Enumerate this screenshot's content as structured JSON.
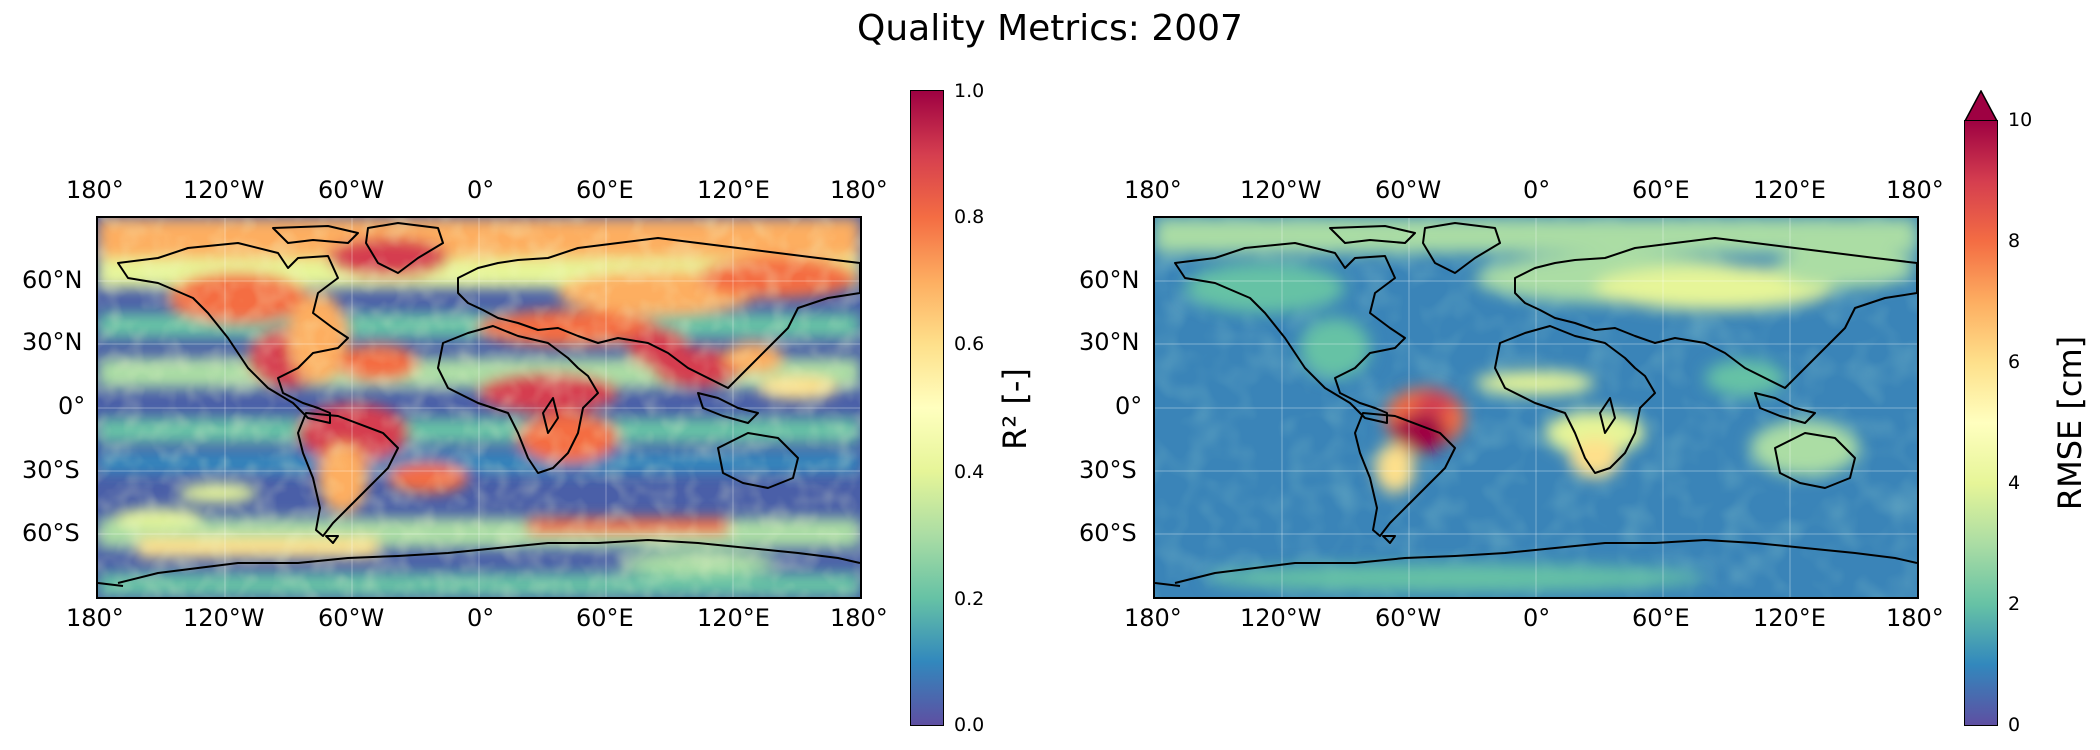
{
  "title": "Quality Metrics: 2007",
  "maps": [
    {
      "id": "r2",
      "lon_ticks": [
        "180°",
        "120°W",
        "60°W",
        "0°",
        "60°E",
        "120°E",
        "180°"
      ],
      "lat_ticks": [
        "60°N",
        "30°N",
        "0°",
        "30°S",
        "60°S"
      ],
      "colorbar": {
        "label": "R² [-]",
        "ticks": [
          "0.0",
          "0.2",
          "0.4",
          "0.6",
          "0.8",
          "1.0"
        ],
        "range": [
          0.0,
          1.0
        ],
        "extend": "neither"
      }
    },
    {
      "id": "rmse",
      "lon_ticks": [
        "180°",
        "120°W",
        "60°W",
        "0°",
        "60°E",
        "120°E",
        "180°"
      ],
      "lat_ticks": [
        "60°N",
        "30°N",
        "0°",
        "30°S",
        "60°S"
      ],
      "colorbar": {
        "label": "RMSE [cm]",
        "ticks": [
          "0",
          "2",
          "4",
          "6",
          "8",
          "10"
        ],
        "range": [
          0,
          10
        ],
        "extend": "max"
      }
    }
  ],
  "colormap": {
    "name": "Spectral_r",
    "stops": [
      "#5e4fa2",
      "#3288bd",
      "#66c2a5",
      "#abdda4",
      "#e6f598",
      "#ffffbf",
      "#fee08b",
      "#fdae61",
      "#f46d43",
      "#d53e4f",
      "#9e0142"
    ]
  }
}
